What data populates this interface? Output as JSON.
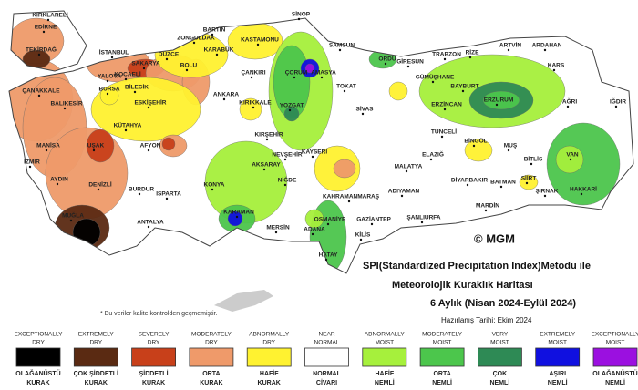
{
  "title": [
    "SPI(Standardized Precipitation Index)Metodu ile",
    "Meteorolojik Kuraklık Haritası",
    "6 Aylık (Nisan 2024-Eylül 2024)"
  ],
  "prepared": "Hazırlanış Tarihi: Ekim 2024",
  "footnote": "* Bu veriler kalite kontrolden geçmemiştir.",
  "logo": "© MGM",
  "cities": [
    "KIRKLARELİ",
    "EDİRNE",
    "TEKİRDAĞ",
    "İSTANBUL",
    "KOCAELİ",
    "SAKARYA",
    "DÜZCE",
    "BOLU",
    "ZONGULDAK",
    "BARTIN",
    "KARABÜK",
    "KASTAMONU",
    "SİNOP",
    "SAMSUN",
    "ORDU",
    "GİRESUN",
    "TRABZON",
    "RİZE",
    "ARTVİN",
    "ARDAHAN",
    "KARS",
    "IĞDIR",
    "AĞRI",
    "VAN",
    "HAKKARİ",
    "ŞIRNAK",
    "SİİRT",
    "BATMAN",
    "BİTLİS",
    "MUŞ",
    "BİNGÖL",
    "TUNCELİ",
    "ERZİNCAN",
    "ERZURUM",
    "BAYBURT",
    "GÜMÜŞHANE",
    "TOKAT",
    "AMASYA",
    "ÇORUM",
    "SİVAS",
    "MALATYA",
    "ELAZIĞ",
    "DİYARBAKIR",
    "MARDİN",
    "ŞANLIURFA",
    "ADIYAMAN",
    "KAHRAMANMARAŞ",
    "GAZİANTEP",
    "KİLİS",
    "OSMANİYE",
    "HATAY",
    "ADANA",
    "MERSİN",
    "KARAMAN",
    "NİĞDE",
    "AKSARAY",
    "NEVŞEHİR",
    "KAYSERİ",
    "KIRŞEHİR",
    "KIRIKKALE",
    "YOZGAT",
    "ANKARA",
    "ÇANKIRI",
    "KONYA",
    "ANTALYA",
    "ISPARTA",
    "BURDUR",
    "AFYON",
    "KÜTAHYA",
    "ESKİŞEHİR",
    "BİLECİK",
    "BURSA",
    "YALOVA",
    "BALIKESİR",
    "ÇANAKKALE",
    "MANİSA",
    "İZMİR",
    "AYDIN",
    "DENİZLİ",
    "UŞAK",
    "MUĞLA"
  ],
  "legend": [
    {
      "en": [
        "EXCEPTIONALLY",
        "DRY"
      ],
      "tr": [
        "OLAĞANÜSTÜ",
        "KURAK"
      ],
      "color": "#000000"
    },
    {
      "en": [
        "EXTREMELY",
        "DRY"
      ],
      "tr": [
        "ÇOK ŞİDDETLİ",
        "KURAK"
      ],
      "color": "#5a2a12"
    },
    {
      "en": [
        "SEVERELY",
        "DRY"
      ],
      "tr": [
        "ŞİDDETLİ",
        "KURAK"
      ],
      "color": "#c8401a"
    },
    {
      "en": [
        "MODERATELY",
        "DRY"
      ],
      "tr": [
        "ORTA",
        "KURAK"
      ],
      "color": "#ef9a6a"
    },
    {
      "en": [
        "ABNORMALLY",
        "DRY"
      ],
      "tr": [
        "HAFİF",
        "KURAK"
      ],
      "color": "#fff230"
    },
    {
      "en": [
        "NEAR",
        "NORMAL"
      ],
      "tr": [
        "NORMAL",
        "CİVARI"
      ],
      "color": "#ffffff"
    },
    {
      "en": [
        "ABNORMALLY",
        "MOIST"
      ],
      "tr": [
        "HAFİF",
        "NEMLİ"
      ],
      "color": "#a6f03c"
    },
    {
      "en": [
        "MODERATELY",
        "MOIST"
      ],
      "tr": [
        "ORTA",
        "NEMLİ"
      ],
      "color": "#4cc64c"
    },
    {
      "en": [
        "VERY",
        "MOIST"
      ],
      "tr": [
        "ÇOK",
        "NEMLİ"
      ],
      "color": "#2e8a55"
    },
    {
      "en": [
        "EXTREMELY",
        "MOIST"
      ],
      "tr": [
        "AŞIRI",
        "NEMLİ"
      ],
      "color": "#1010e0"
    },
    {
      "en": [
        "EXCEPTIONALLY",
        "MOIST"
      ],
      "tr": [
        "OLAĞANÜSTÜ",
        "NEMLİ"
      ],
      "color": "#9b10e0"
    }
  ]
}
